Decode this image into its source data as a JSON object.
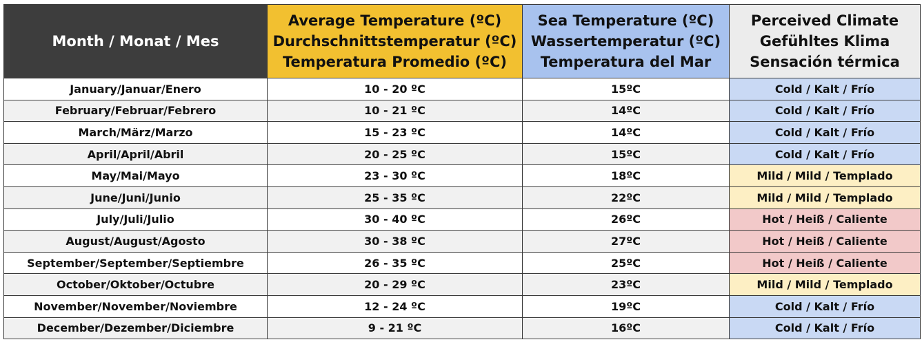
{
  "colors": {
    "month_header": "#3d3d3d",
    "avg_header": "#f2c030",
    "sea_header": "#a8c2ee",
    "feel_header": "#ececec",
    "cold": "#c9d9f4",
    "mild": "#fdefc4",
    "hot": "#f2c9c9"
  },
  "headers": {
    "month": [
      "Month / Monat / Mes"
    ],
    "avg": [
      "Average Temperature (ºC)",
      "Durchschnittstemperatur (ºC)",
      "Temperatura Promedio (ºC)"
    ],
    "sea": [
      "Sea Temperature (ºC)",
      "Wassertemperatur (ºC)",
      "Temperatura del Mar"
    ],
    "feel": [
      "Perceived Climate",
      "Gefühltes Klima",
      "Sensación térmica"
    ]
  },
  "rows": [
    {
      "month": "January/Januar/Enero",
      "avg": "10 - 20 ºC",
      "sea": "15ºC",
      "feel": "Cold / Kalt / Frío",
      "feel_class": "cold"
    },
    {
      "month": "February/Februar/Febrero",
      "avg": "10 - 21 ºC",
      "sea": "14ºC",
      "feel": "Cold / Kalt / Frío",
      "feel_class": "cold"
    },
    {
      "month": "March/März/Marzo",
      "avg": "15 - 23 ºC",
      "sea": "14ºC",
      "feel": "Cold / Kalt / Frío",
      "feel_class": "cold"
    },
    {
      "month": "April/April/Abril",
      "avg": "20 - 25 ºC",
      "sea": "15ºC",
      "feel": "Cold / Kalt / Frío",
      "feel_class": "cold"
    },
    {
      "month": "May/Mai/Mayo",
      "avg": "23 - 30 ºC",
      "sea": "18ºC",
      "feel": "Mild / Mild / Templado",
      "feel_class": "mild"
    },
    {
      "month": "June/Juni/Junio",
      "avg": "25 - 35 ºC",
      "sea": "22ºC",
      "feel": "Mild / Mild / Templado",
      "feel_class": "mild"
    },
    {
      "month": "July/Juli/Julio",
      "avg": "30 - 40 ºC",
      "sea": "26ºC",
      "feel": "Hot / Heiß / Caliente",
      "feel_class": "hot"
    },
    {
      "month": "August/August/Agosto",
      "avg": "30 - 38 ºC",
      "sea": "27ºC",
      "feel": "Hot / Heiß / Caliente",
      "feel_class": "hot"
    },
    {
      "month": "September/September/Septiembre",
      "avg": "26 - 35 ºC",
      "sea": "25ºC",
      "feel": "Hot / Heiß / Caliente",
      "feel_class": "hot"
    },
    {
      "month": "October/Oktober/Octubre",
      "avg": "20 - 29 ºC",
      "sea": "23ºC",
      "feel": "Mild / Mild / Templado",
      "feel_class": "mild"
    },
    {
      "month": "November/November/Noviembre",
      "avg": "12 - 24 ºC",
      "sea": "19ºC",
      "feel": "Cold / Kalt / Frío",
      "feel_class": "cold"
    },
    {
      "month": "December/Dezember/Diciembre",
      "avg": "9 - 21 ºC",
      "sea": "16ºC",
      "feel": "Cold / Kalt / Frío",
      "feel_class": "cold"
    }
  ]
}
